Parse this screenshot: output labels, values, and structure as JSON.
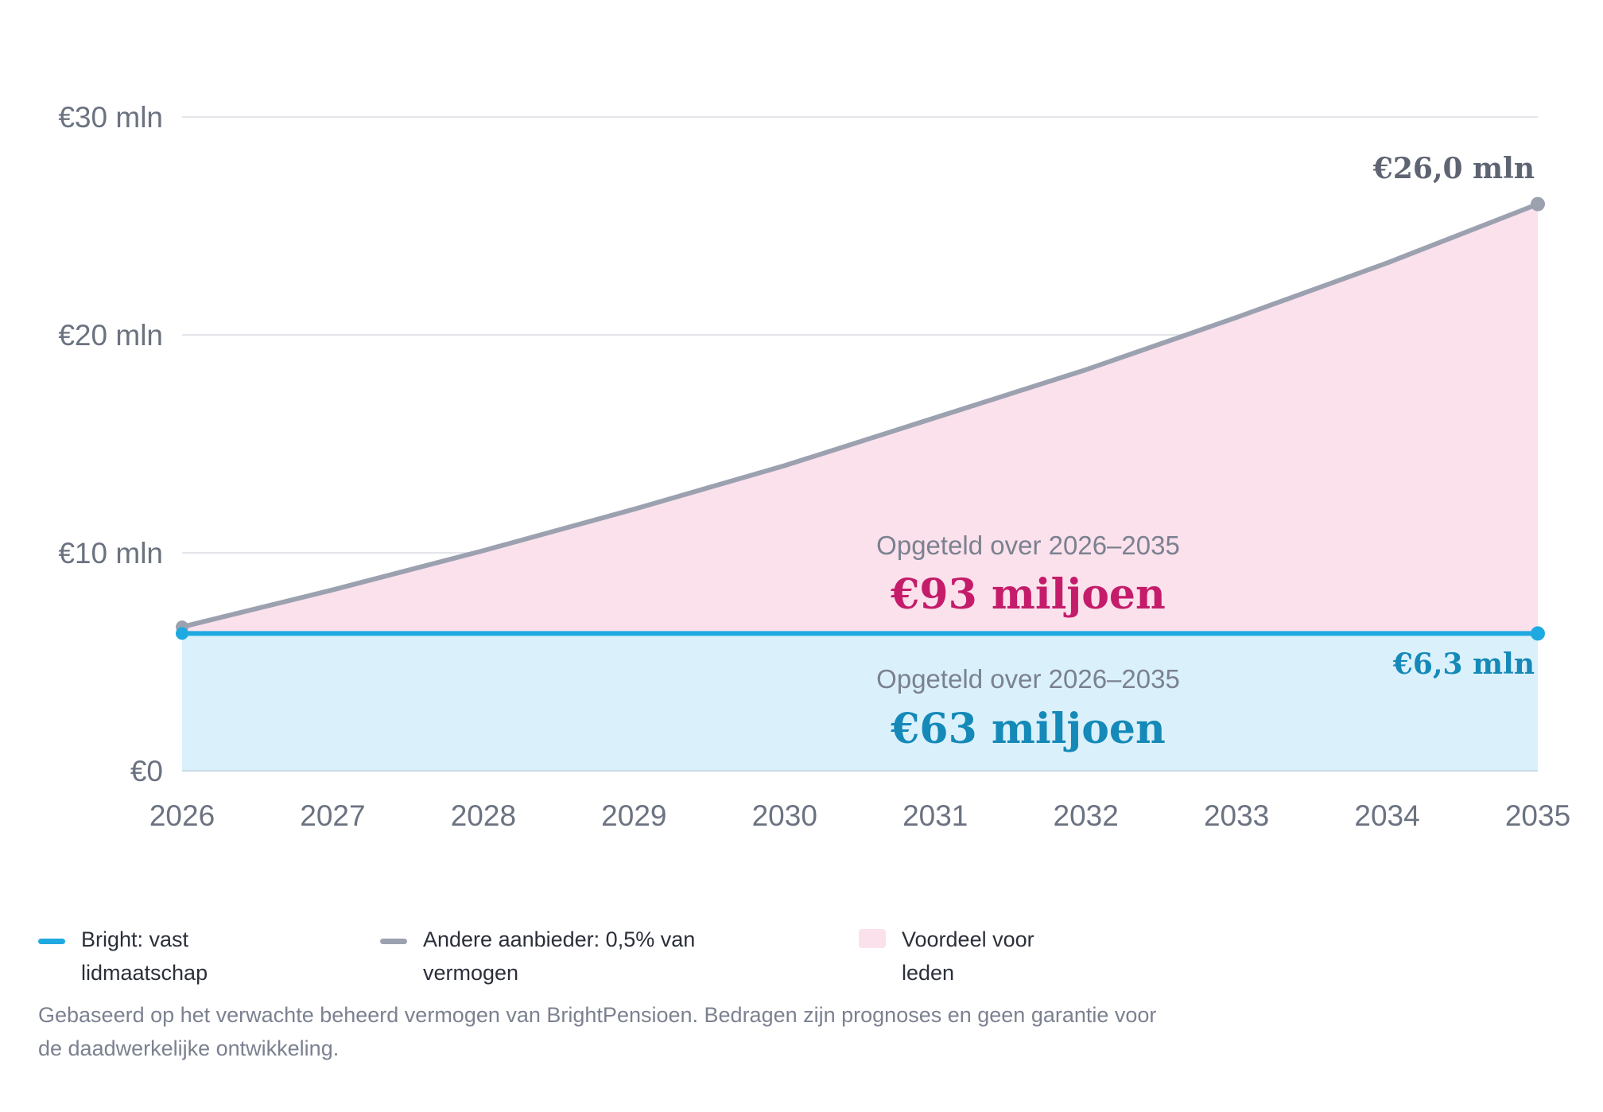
{
  "chart_data": {
    "type": "area",
    "x": [
      "2026",
      "2027",
      "2028",
      "2029",
      "2030",
      "2031",
      "2032",
      "2033",
      "2034",
      "2035"
    ],
    "ylim": [
      0,
      30
    ],
    "yticks": [
      {
        "value": 0,
        "label": "€0"
      },
      {
        "value": 10,
        "label": "€10 mln"
      },
      {
        "value": 20,
        "label": "€20 mln"
      },
      {
        "value": 30,
        "label": "€30 mln"
      }
    ],
    "grid": true,
    "series": [
      {
        "name": "Bright: vast lidmaatschap",
        "values": [
          6.3,
          6.3,
          6.3,
          6.3,
          6.3,
          6.3,
          6.3,
          6.3,
          6.3,
          6.3
        ],
        "color": "#1fa9e1",
        "fill": "#daf1fb",
        "end_label": "€6,3 mln"
      },
      {
        "name": "Andere aanbieder: 0,5% van vermogen",
        "values": [
          6.6,
          8.3,
          10.1,
          12.0,
          14.0,
          16.2,
          18.4,
          20.8,
          23.3,
          26.0
        ],
        "color": "#9ca1b0",
        "end_label": "€26,0 mln"
      }
    ],
    "difference_fill": "#fbe1ec",
    "annotations": [
      {
        "id": "advantage",
        "subtitle": "Opgeteld over 2026–2035",
        "value": "€93 miljoen",
        "color": "#c41c6a"
      },
      {
        "id": "bright_total",
        "subtitle": "Opgeteld over 2026–2035",
        "value": "€63 miljoen",
        "color": "#1589b8"
      }
    ],
    "end_label_colors": {
      "bright": "#1589b8",
      "other": "#5f6472"
    }
  },
  "legend": {
    "items": [
      {
        "label": "Bright: vast lidmaatschap",
        "color": "#1fa9e1",
        "kind": "line"
      },
      {
        "label": "Andere aanbieder: 0,5% van vermogen",
        "color": "#9ca1b0",
        "kind": "line"
      },
      {
        "label": "Voordeel voor leden",
        "color": "#fbe1ec",
        "kind": "box"
      }
    ]
  },
  "footnote": "Gebaseerd op het verwachte beheerd vermogen van BrightPensioen. Bedragen zijn prognoses en geen garantie voor de daadwerkelijke ontwikkeling."
}
